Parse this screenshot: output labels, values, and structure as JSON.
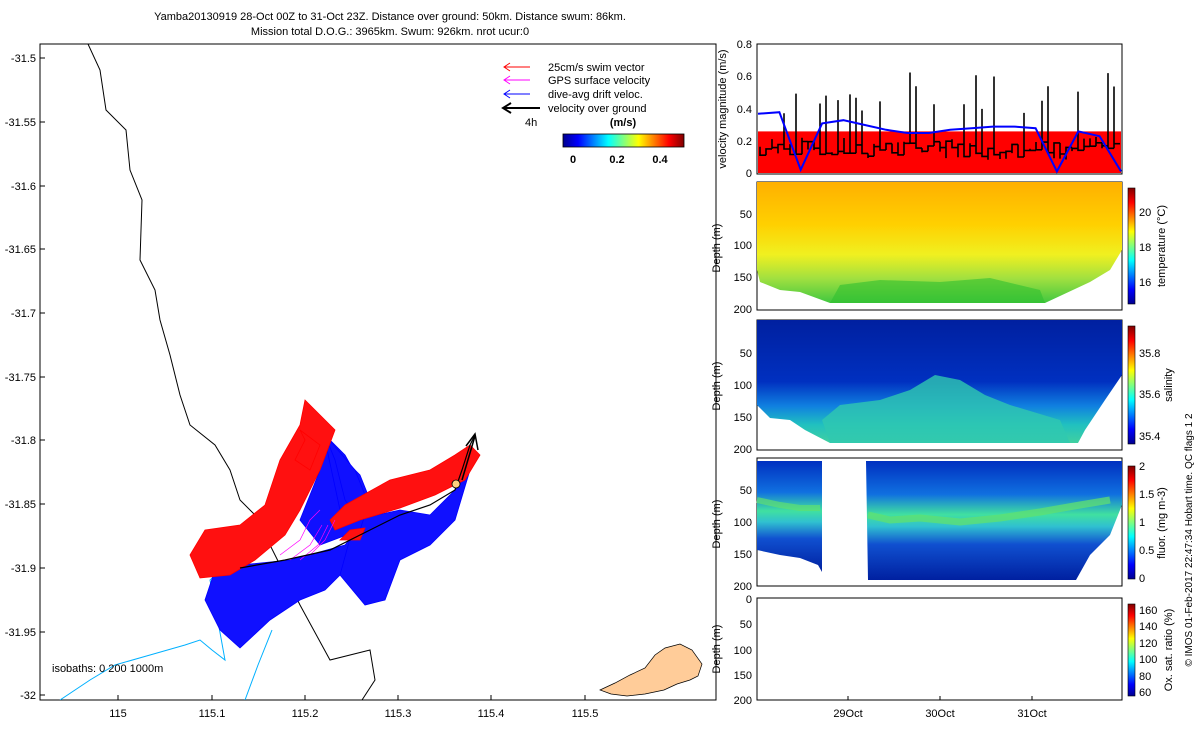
{
  "header": {
    "line1": "Yamba20130919 28-Oct 00Z to 31-Oct 23Z. Distance over ground: 50km. Distance swum: 86km.",
    "line2": "Mission total D.O.G.: 3965km. Swum: 926km. nrot ucur:0"
  },
  "map": {
    "lat_ticks": [
      "-31.5",
      "-31.55",
      "-31.6",
      "-31.65",
      "-31.7",
      "-31.75",
      "-31.8",
      "-31.85",
      "-31.9",
      "-31.95",
      "-32"
    ],
    "lon_ticks": [
      "115",
      "115.1",
      "115.2",
      "115.3",
      "115.4",
      "115.5"
    ],
    "legend": [
      {
        "label": "25cm/s swim vector",
        "color": "#ff0000"
      },
      {
        "label": "GPS surface velocity",
        "color": "#ff00ff"
      },
      {
        "label": "dive-avg drift veloc.",
        "color": "#0000ff"
      },
      {
        "label": "velocity over ground",
        "color": "#000000"
      }
    ],
    "time_scale_label": "4h",
    "colorbar": {
      "title": "(m/s)",
      "ticks": [
        "0",
        "0.2",
        "0.4"
      ]
    },
    "isobaths_label": "isobaths: 0   200  1000m"
  },
  "credit": "© IMOS 01-Feb-2017 22:47:34 Hobart time. QC flags 1  2",
  "chart_data": [
    {
      "type": "line",
      "ylabel": "velocity magnitude (m/s)",
      "ylim": [
        0,
        0.8
      ],
      "yticks": [
        "0",
        "0.2",
        "0.4",
        "0.6",
        "0.8"
      ],
      "series": [
        {
          "name": "",
          "color": "#ff0000",
          "values": [
            0.26,
            0.26
          ]
        },
        {
          "name": "",
          "color": "#0000ff",
          "values": [
            0.37,
            0.38,
            0.02,
            0.31,
            0.33,
            0.3,
            0.27,
            0.25,
            0.25,
            0.27,
            0.28,
            0.29,
            0.29,
            0.28,
            0.01,
            0.26,
            0.23,
            0.01
          ]
        }
      ]
    },
    {
      "type": "heatmap",
      "ylabel": "Depth (m)",
      "yticks": [
        "50",
        "100",
        "150",
        "200"
      ],
      "colorbar_label": "temperature (°C)",
      "colorbar_ticks": [
        "16",
        "18",
        "20"
      ],
      "clim": [
        15,
        21
      ]
    },
    {
      "type": "heatmap",
      "ylabel": "Depth (m)",
      "yticks": [
        "50",
        "100",
        "150",
        "200"
      ],
      "colorbar_label": "salinity",
      "colorbar_ticks": [
        "35.4",
        "35.6",
        "35.8"
      ],
      "clim": [
        35.35,
        35.95
      ]
    },
    {
      "type": "heatmap",
      "ylabel": "Depth (m)",
      "yticks": [
        "50",
        "100",
        "150",
        "200"
      ],
      "colorbar_label": "fluor. (mg m-3)",
      "colorbar_ticks": [
        "0",
        "0.5",
        "1",
        "1.5",
        "2"
      ],
      "clim": [
        0,
        2
      ]
    },
    {
      "type": "heatmap",
      "ylabel": "Depth (m)",
      "yticks": [
        "0",
        "50",
        "100",
        "150",
        "200"
      ],
      "colorbar_label": "Ox. sat. ratio (%)",
      "colorbar_ticks": [
        "60",
        "80",
        "100",
        "120",
        "140",
        "160"
      ],
      "clim": [
        60,
        170
      ],
      "xticks": [
        "29Oct",
        "30Oct",
        "31Oct"
      ]
    }
  ]
}
